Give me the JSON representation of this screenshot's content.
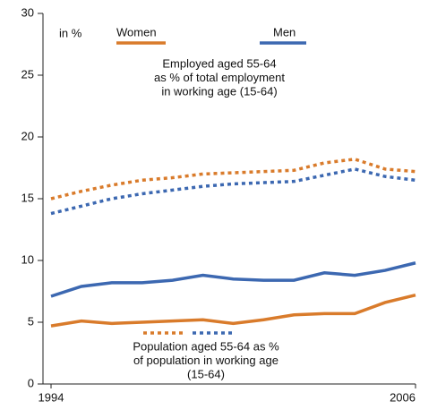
{
  "chart_data": {
    "type": "line",
    "y_label": "in %",
    "annotations": [
      [
        "Employed aged 55-64",
        "as % of total employment",
        "in working age (15-64)"
      ],
      [
        "Population aged 55-64 as %",
        "of population in working age",
        "(15-64)"
      ]
    ],
    "x": [
      1994,
      1995,
      1996,
      1997,
      1998,
      1999,
      2000,
      2001,
      2002,
      2003,
      2004,
      2005,
      2006
    ],
    "xlim": [
      1994,
      2006
    ],
    "xticks": [
      1994,
      2006
    ],
    "ylim": [
      0,
      30
    ],
    "yticks": [
      0,
      5,
      10,
      15,
      20,
      25,
      30
    ],
    "series": [
      {
        "name": "Women",
        "color": "#d97b2b",
        "style": "solid",
        "values": [
          4.7,
          5.1,
          4.9,
          5.0,
          5.1,
          5.2,
          4.9,
          5.2,
          5.6,
          5.7,
          5.7,
          6.6,
          7.2
        ]
      },
      {
        "name": "Men",
        "color": "#3c68b1",
        "style": "solid",
        "values": [
          7.1,
          7.9,
          8.2,
          8.2,
          8.4,
          8.8,
          8.5,
          8.4,
          8.4,
          9.0,
          8.8,
          9.2,
          9.8
        ]
      },
      {
        "color": "#d97b2b",
        "style": "dotted",
        "values": [
          15.0,
          15.6,
          16.1,
          16.5,
          16.7,
          17.0,
          17.1,
          17.2,
          17.3,
          17.9,
          18.2,
          17.4,
          17.2
        ]
      },
      {
        "color": "#3c68b1",
        "style": "dotted",
        "values": [
          13.8,
          14.4,
          15.0,
          15.4,
          15.7,
          16.0,
          16.2,
          16.3,
          16.4,
          16.9,
          17.4,
          16.8,
          16.5
        ]
      }
    ]
  }
}
